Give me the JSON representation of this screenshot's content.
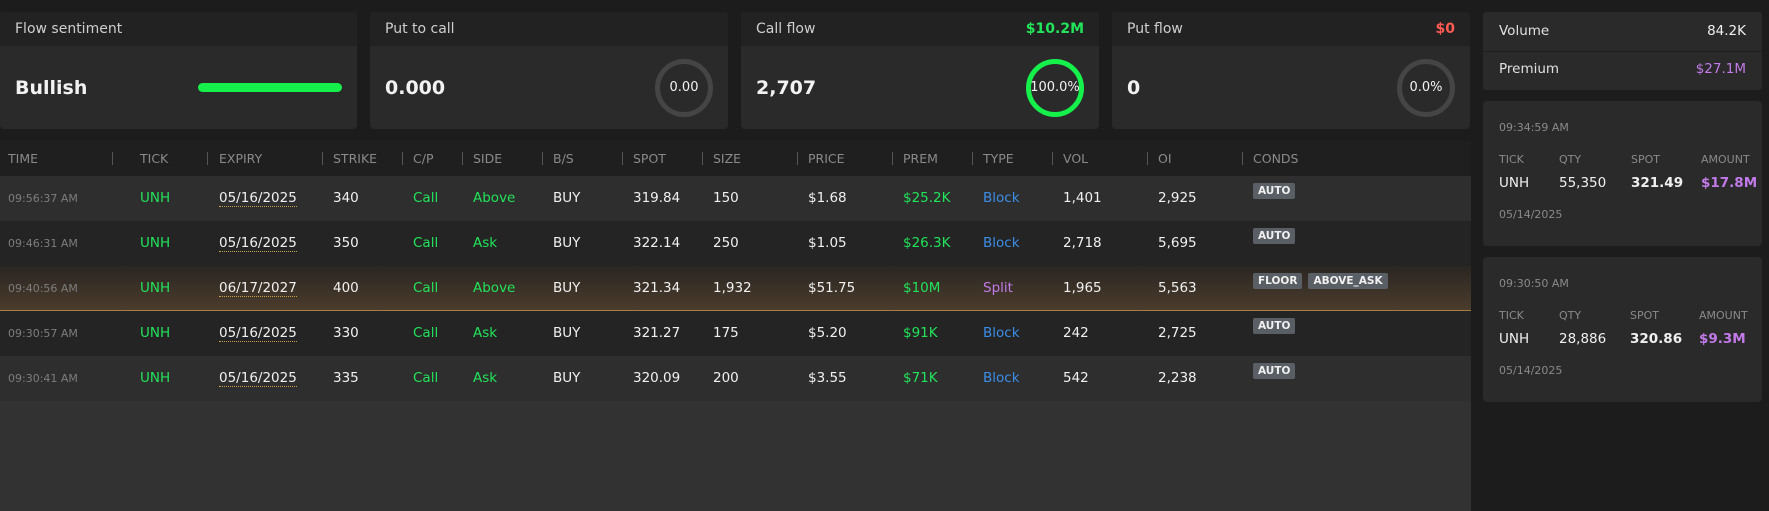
{
  "cards": {
    "sentiment": {
      "title": "Flow sentiment",
      "value": "Bullish",
      "bar_fraction": 1.0,
      "bar_color": "#16f04a"
    },
    "put_to_call": {
      "title": "Put to call",
      "value": "0.000",
      "ring_label": "0.00"
    },
    "call_flow": {
      "title": "Call flow",
      "amount": "$10.2M",
      "value": "2,707",
      "ring_label": "100.0%",
      "percent": 100.0
    },
    "put_flow": {
      "title": "Put flow",
      "amount": "$0",
      "value": "0",
      "ring_label": "0.0%",
      "percent": 0.0
    }
  },
  "table": {
    "headers": [
      "TIME",
      "TICK",
      "EXPIRY",
      "STRIKE",
      "C/P",
      "SIDE",
      "B/S",
      "SPOT",
      "SIZE",
      "PRICE",
      "PREM",
      "TYPE",
      "VOL",
      "OI",
      "CONDS"
    ],
    "rows": [
      {
        "time": "09:56:37 AM",
        "tick": "UNH",
        "expiry": "05/16/2025",
        "strike": "340",
        "cp": "Call",
        "side": "Above",
        "bs": "BUY",
        "spot": "319.84",
        "size": "150",
        "price": "$1.68",
        "prem": "$25.2K",
        "type": "Block",
        "vol": "1,401",
        "oi": "2,925",
        "conds": [
          "AUTO"
        ]
      },
      {
        "time": "09:46:31 AM",
        "tick": "UNH",
        "expiry": "05/16/2025",
        "strike": "350",
        "cp": "Call",
        "side": "Ask",
        "bs": "BUY",
        "spot": "322.14",
        "size": "250",
        "price": "$1.05",
        "prem": "$26.3K",
        "type": "Block",
        "vol": "2,718",
        "oi": "5,695",
        "conds": [
          "AUTO"
        ]
      },
      {
        "time": "09:40:56 AM",
        "tick": "UNH",
        "expiry": "06/17/2027",
        "strike": "400",
        "cp": "Call",
        "side": "Above",
        "bs": "BUY",
        "spot": "321.34",
        "size": "1,932",
        "price": "$51.75",
        "prem": "$10M",
        "type": "Split",
        "vol": "1,965",
        "oi": "5,563",
        "conds": [
          "FLOOR",
          "ABOVE_ASK"
        ]
      },
      {
        "time": "09:30:57 AM",
        "tick": "UNH",
        "expiry": "05/16/2025",
        "strike": "330",
        "cp": "Call",
        "side": "Ask",
        "bs": "BUY",
        "spot": "321.27",
        "size": "175",
        "price": "$5.20",
        "prem": "$91K",
        "type": "Block",
        "vol": "242",
        "oi": "2,725",
        "conds": [
          "AUTO"
        ]
      },
      {
        "time": "09:30:41 AM",
        "tick": "UNH",
        "expiry": "05/16/2025",
        "strike": "335",
        "cp": "Call",
        "side": "Ask",
        "bs": "BUY",
        "spot": "320.09",
        "size": "200",
        "price": "$3.55",
        "prem": "$71K",
        "type": "Block",
        "vol": "542",
        "oi": "2,238",
        "conds": [
          "AUTO"
        ]
      }
    ]
  },
  "summary": {
    "volume_label": "Volume",
    "volume_value": "84.2K",
    "premium_label": "Premium",
    "premium_value": "$27.1M"
  },
  "trades": [
    {
      "time": "09:34:59 AM",
      "headers": [
        "TICK",
        "QTY",
        "SPOT",
        "AMOUNT"
      ],
      "tick": "UNH",
      "qty": "55,350",
      "spot": "321.49",
      "amount": "$17.8M",
      "date": "05/14/2025"
    },
    {
      "time": "09:30:50 AM",
      "headers": [
        "TICK",
        "QTY",
        "SPOT",
        "AMOUNT"
      ],
      "tick": "UNH",
      "qty": "28,886",
      "spot": "320.86",
      "amount": "$9.3M",
      "date": "05/14/2025"
    }
  ],
  "colors": {
    "green": "#22e35a",
    "red": "#ff5a52",
    "blue": "#3b8ee8",
    "purple": "#c27ae8",
    "highlight_border": "#a87a45"
  }
}
